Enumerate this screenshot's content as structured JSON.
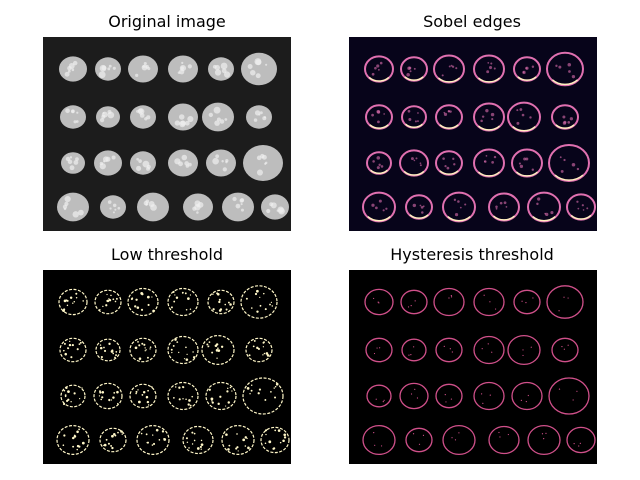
{
  "figure": {
    "background": "#ffffff",
    "panels": [
      {
        "title": "Original image",
        "kind": "original",
        "colors": {
          "bg": "#1c1c1c",
          "coin": "#bdbdbd",
          "detail": "#f0f0f0"
        }
      },
      {
        "title": "Sobel edges",
        "kind": "sobel",
        "colors": {
          "bg": "#07041a",
          "edge": "#e070b0",
          "edge_hot": "#fff0c0"
        }
      },
      {
        "title": "Low threshold",
        "kind": "low",
        "colors": {
          "bg": "#000000",
          "edge": "#fff7c8"
        }
      },
      {
        "title": "Hysteresis threshold",
        "kind": "hyst",
        "colors": {
          "bg": "#000000",
          "edge": "#d0508a"
        }
      }
    ],
    "coin_grid": {
      "rows": 4,
      "columns": [
        6,
        6,
        6,
        6
      ]
    }
  }
}
